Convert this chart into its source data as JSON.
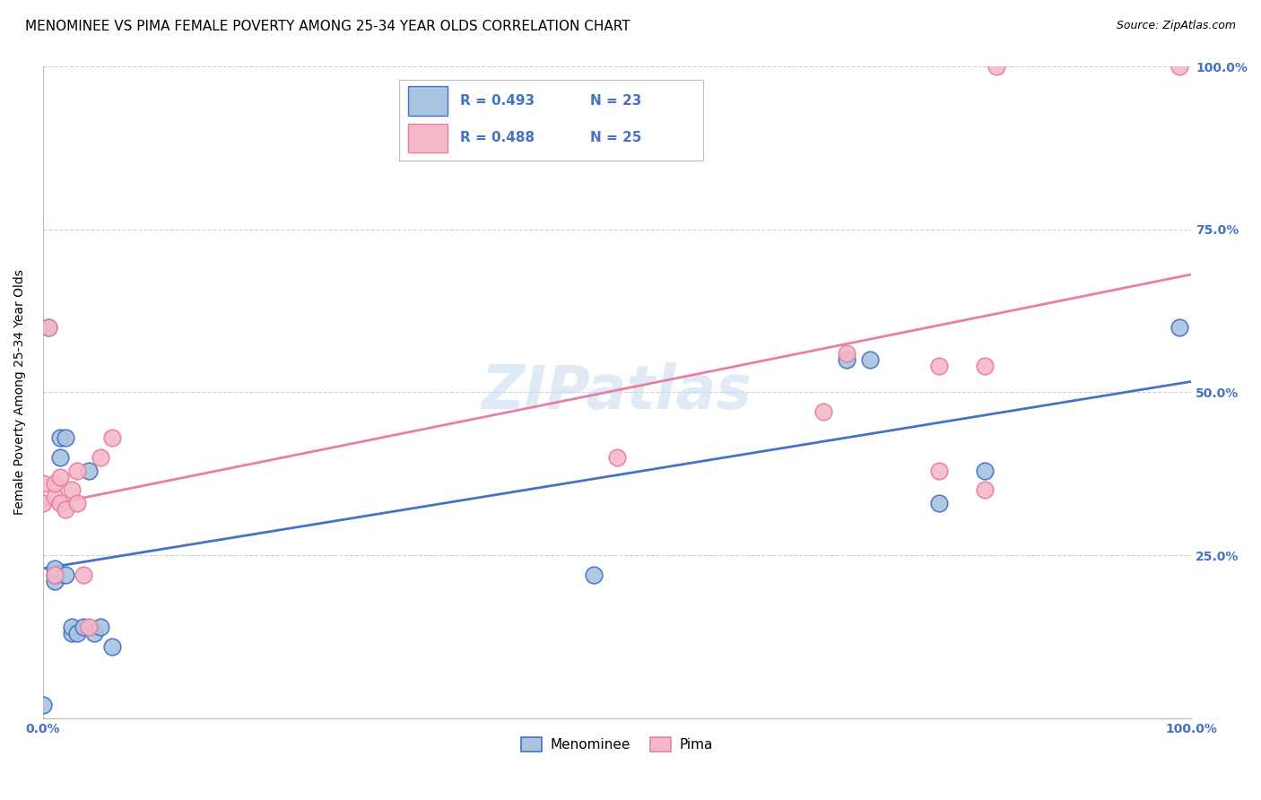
{
  "title": "MENOMINEE VS PIMA FEMALE POVERTY AMONG 25-34 YEAR OLDS CORRELATION CHART",
  "source": "Source: ZipAtlas.com",
  "ylabel": "Female Poverty Among 25-34 Year Olds",
  "xlim": [
    0,
    1.0
  ],
  "ylim": [
    0,
    1.0
  ],
  "menominee_color": "#a8c4e0",
  "pima_color": "#f4b8c8",
  "menominee_line_color": "#4472c4",
  "pima_line_color": "#e87fa0",
  "watermark": "ZIPatlas",
  "menominee_x": [
    0.0,
    0.005,
    0.01,
    0.01,
    0.01,
    0.015,
    0.015,
    0.02,
    0.02,
    0.025,
    0.025,
    0.03,
    0.035,
    0.04,
    0.045,
    0.05,
    0.06,
    0.48,
    0.7,
    0.72,
    0.78,
    0.82,
    0.99
  ],
  "menominee_y": [
    0.02,
    0.6,
    0.21,
    0.22,
    0.23,
    0.4,
    0.43,
    0.22,
    0.43,
    0.13,
    0.14,
    0.13,
    0.14,
    0.38,
    0.13,
    0.14,
    0.11,
    0.22,
    0.55,
    0.55,
    0.33,
    0.38,
    0.6
  ],
  "pima_x": [
    0.0,
    0.0,
    0.005,
    0.01,
    0.01,
    0.01,
    0.015,
    0.015,
    0.02,
    0.025,
    0.03,
    0.03,
    0.035,
    0.04,
    0.05,
    0.06,
    0.5,
    0.68,
    0.7,
    0.78,
    0.78,
    0.82,
    0.82,
    0.83,
    0.99
  ],
  "pima_y": [
    0.33,
    0.36,
    0.6,
    0.22,
    0.34,
    0.36,
    0.33,
    0.37,
    0.32,
    0.35,
    0.33,
    0.38,
    0.22,
    0.14,
    0.4,
    0.43,
    0.4,
    0.47,
    0.56,
    0.54,
    0.38,
    0.54,
    0.35,
    1.0,
    1.0
  ],
  "background_color": "#ffffff",
  "grid_color": "#d0d0d0",
  "title_fontsize": 11,
  "axis_label_fontsize": 10,
  "tick_fontsize": 10
}
